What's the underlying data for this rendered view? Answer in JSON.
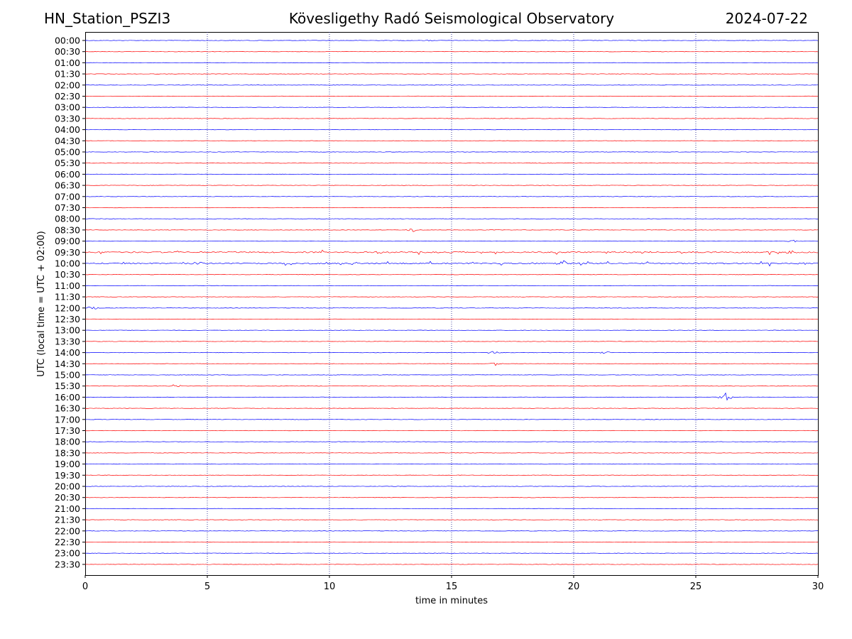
{
  "header": {
    "station": "HN_Station_PSZI3",
    "title": "Kövesligethy Radó Seismological Observatory",
    "date": "2024-07-22"
  },
  "chart_data": {
    "type": "line",
    "title": "Kövesligethy Radó Seismological Observatory",
    "xlabel": "time in minutes",
    "ylabel": "UTC (local time = UTC + 02:00)",
    "xlim": [
      0,
      30
    ],
    "xticks": [
      0,
      5,
      10,
      15,
      20,
      25,
      30
    ],
    "grid": "vertical dotted lines at x ticks",
    "colors": {
      "even_rows": "#0000ff",
      "odd_rows": "#ff0000"
    },
    "rows": [
      "00:00",
      "00:30",
      "01:00",
      "01:30",
      "02:00",
      "02:30",
      "03:00",
      "03:30",
      "04:00",
      "04:30",
      "05:00",
      "05:30",
      "06:00",
      "06:30",
      "07:00",
      "07:30",
      "08:00",
      "08:30",
      "09:00",
      "09:30",
      "10:00",
      "10:30",
      "11:00",
      "11:30",
      "12:00",
      "12:30",
      "13:00",
      "13:30",
      "14:00",
      "14:30",
      "15:00",
      "15:30",
      "16:00",
      "16:30",
      "17:00",
      "17:30",
      "18:00",
      "18:30",
      "19:00",
      "19:30",
      "20:00",
      "20:30",
      "21:00",
      "21:30",
      "22:00",
      "22:30",
      "23:00",
      "23:30"
    ],
    "events": [
      {
        "row": "00:00",
        "minute": 14.0,
        "amplitude": 1.0
      },
      {
        "row": "08:30",
        "minute": 13.4,
        "amplitude": 3.0
      },
      {
        "row": "09:00",
        "minute": 29.0,
        "amplitude": 2.0
      },
      {
        "row": "09:30",
        "minute": 12.1,
        "amplitude": 3.0
      },
      {
        "row": "09:30",
        "minute": 28.9,
        "amplitude": 3.0
      },
      {
        "row": "10:00",
        "minute": 19.6,
        "amplitude": 5.0
      },
      {
        "row": "10:00",
        "minute": 4.6,
        "amplitude": 2.5
      },
      {
        "row": "10:00",
        "minute": 29.4,
        "amplitude": 2.5
      },
      {
        "row": "12:00",
        "minute": 0.3,
        "amplitude": 2.5
      },
      {
        "row": "14:00",
        "minute": 16.7,
        "amplitude": 2.5
      },
      {
        "row": "14:00",
        "minute": 21.3,
        "amplitude": 2.0
      },
      {
        "row": "14:30",
        "minute": 16.8,
        "amplitude": 2.5
      },
      {
        "row": "15:30",
        "minute": 3.7,
        "amplitude": 2.5
      },
      {
        "row": "16:00",
        "minute": 26.2,
        "amplitude": 7.0
      }
    ],
    "noisy_rows": [
      "09:30",
      "10:00"
    ]
  }
}
